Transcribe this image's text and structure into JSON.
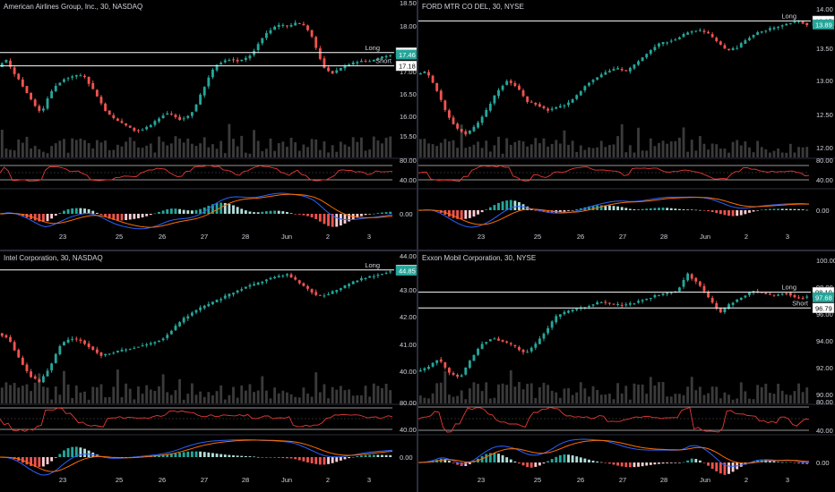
{
  "layout": "2x2 chart grid",
  "colors": {
    "background": "#000000",
    "up_candle": "#26a69a",
    "down_candle": "#ef5350",
    "volume": "#3a3a3a",
    "rsi_line": "#e53935",
    "macd_line": "#2962ff",
    "signal_line": "#ff6d00",
    "level_line": "#ffffff",
    "axis_text": "#d1d4dc"
  },
  "charts": [
    {
      "title": "American Airlines Group, Inc., 30, NASDAQ",
      "price_ticks": [
        "18.50",
        "18.00",
        "17.50",
        "17.00",
        "16.50",
        "16.00",
        "15.50"
      ],
      "rsi_ticks": [
        "80.00",
        "40.00"
      ],
      "macd_ticks": [
        "0.00"
      ],
      "date_labels": [
        "23",
        "25",
        "26",
        "27",
        "28",
        "Jun",
        "2",
        "3"
      ],
      "level_labels": {
        "long": "Long",
        "short": "Short"
      },
      "level_values": {
        "long": "17.51",
        "current": "17.46",
        "short": "17.18"
      },
      "chart_data": {
        "type": "candlestick",
        "ylim": [
          15.25,
          18.6
        ],
        "long": 17.51,
        "current": 17.46,
        "short": 17.18,
        "path": [
          17.15,
          17.35,
          17.05,
          16.8,
          16.5,
          16.2,
          16.0,
          16.45,
          16.7,
          16.85,
          16.9,
          16.95,
          16.9,
          16.6,
          16.3,
          16.0,
          15.85,
          15.75,
          15.65,
          15.55,
          15.6,
          15.7,
          15.85,
          16.0,
          15.95,
          15.85,
          15.9,
          16.1,
          16.5,
          16.9,
          17.2,
          17.3,
          17.35,
          17.3,
          17.35,
          17.5,
          17.8,
          18.0,
          18.15,
          18.2,
          18.15,
          18.25,
          18.2,
          18.0,
          17.5,
          17.1,
          17.0,
          17.1,
          17.2,
          17.25,
          17.3,
          17.28,
          17.35,
          17.4,
          17.46
        ]
      }
    },
    {
      "title": "FORD MTR CO DEL, 30, NYSE",
      "price_ticks": [
        "14.00",
        "13.50",
        "13.00",
        "12.50",
        "12.00"
      ],
      "rsi_ticks": [
        "80.00",
        "40.00"
      ],
      "macd_ticks": [
        "0.00"
      ],
      "date_labels": [
        "23",
        "25",
        "26",
        "27",
        "28",
        "Jun",
        "2",
        "3"
      ],
      "level_labels": {
        "long": "Long"
      },
      "level_values": {
        "long": "13.95",
        "current": "13.89"
      },
      "chart_data": {
        "type": "candlestick",
        "ylim": [
          11.9,
          14.15
        ],
        "long": 13.95,
        "current": 13.89,
        "path": [
          13.05,
          13.1,
          12.8,
          12.4,
          12.15,
          12.05,
          12.2,
          12.45,
          12.75,
          12.95,
          12.85,
          12.6,
          12.55,
          12.45,
          12.5,
          12.55,
          12.7,
          12.9,
          13.0,
          13.1,
          13.15,
          13.1,
          13.25,
          13.4,
          13.55,
          13.6,
          13.65,
          13.75,
          13.8,
          13.75,
          13.6,
          13.45,
          13.5,
          13.65,
          13.75,
          13.8,
          13.85,
          13.9,
          13.95,
          13.89
        ]
      }
    },
    {
      "title": "Intel Corporation, 30, NASDAQ",
      "price_ticks": [
        "44.00",
        "43.00",
        "42.00",
        "41.00",
        "40.00"
      ],
      "rsi_ticks": [
        "80.00",
        "40.00"
      ],
      "macd_ticks": [
        "0.00"
      ],
      "date_labels": [
        "23",
        "25",
        "26",
        "27",
        "28",
        "Jun",
        "2",
        "3"
      ],
      "level_labels": {
        "long": "Long"
      },
      "level_values": {
        "long": "44.88",
        "current": "44.85"
      },
      "chart_data": {
        "type": "candlestick",
        "ylim": [
          39.8,
          45.2
        ],
        "long": 44.88,
        "current": 44.85,
        "path": [
          42.3,
          42.1,
          41.3,
          40.6,
          40.3,
          40.9,
          41.8,
          42.1,
          42.0,
          41.7,
          41.4,
          41.5,
          41.6,
          41.7,
          41.8,
          41.9,
          42.1,
          42.5,
          42.9,
          43.2,
          43.4,
          43.6,
          43.8,
          44.0,
          44.2,
          44.3,
          44.5,
          44.6,
          44.7,
          44.4,
          44.1,
          43.8,
          43.9,
          44.1,
          44.3,
          44.5,
          44.6,
          44.7,
          44.85
        ]
      }
    },
    {
      "title": "Exxon Mobil Corporation, 30, NYSE",
      "price_ticks": [
        "100.00",
        "98.00",
        "96.00",
        "94.00",
        "92.00",
        "90.00"
      ],
      "rsi_ticks": [
        "80.00",
        "40.00"
      ],
      "macd_ticks": [
        "0.00"
      ],
      "date_labels": [
        "23",
        "25",
        "26",
        "27",
        "28",
        "Jun",
        "2",
        "3"
      ],
      "level_labels": {
        "long": "Long",
        "short": "Short"
      },
      "level_values": {
        "long": "98.10",
        "current": "97.68",
        "short": "96.79"
      },
      "chart_data": {
        "type": "candlestick",
        "ylim": [
          89.6,
          100.6
        ],
        "long": 98.1,
        "current": 97.68,
        "short": 96.79,
        "path": [
          91.5,
          91.8,
          92.6,
          91.4,
          91.0,
          92.5,
          93.8,
          94.3,
          94.0,
          93.6,
          93.0,
          93.8,
          95.0,
          96.2,
          96.5,
          96.8,
          97.0,
          97.3,
          97.1,
          97.0,
          97.2,
          97.5,
          97.8,
          98.0,
          98.2,
          99.6,
          98.8,
          97.5,
          96.4,
          97.2,
          97.7,
          98.2,
          98.0,
          97.8,
          98.1,
          97.6,
          97.68
        ]
      }
    }
  ]
}
